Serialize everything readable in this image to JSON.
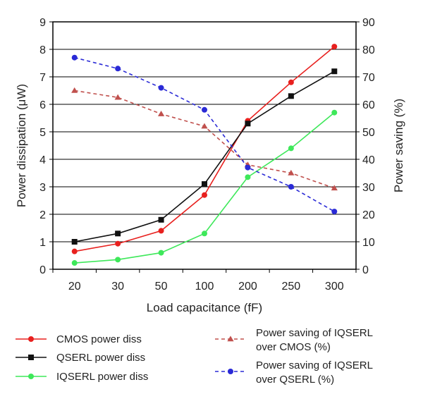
{
  "chart_data": {
    "type": "line",
    "categories": [
      "20",
      "30",
      "50",
      "100",
      "200",
      "250",
      "300"
    ],
    "xlabel": "Load capacitance (fF)",
    "ylabel_left": "Power dissipation (μW)",
    "ylabel_right": "Power saving (%)",
    "ylim_left": [
      0,
      9
    ],
    "ylim_right": [
      0,
      90
    ],
    "yticks_left": [
      "0",
      "1",
      "2",
      "3",
      "4",
      "5",
      "6",
      "7",
      "8",
      "9"
    ],
    "yticks_right": [
      "0",
      "10",
      "20",
      "30",
      "40",
      "50",
      "60",
      "70",
      "80",
      "90"
    ],
    "grid": true,
    "legend_position": "bottom",
    "series": [
      {
        "name": "CMOS power diss",
        "axis": "left",
        "color": "#e8201e",
        "marker": "circle",
        "dash": false,
        "values": [
          0.65,
          0.93,
          1.4,
          2.7,
          5.4,
          6.8,
          8.1
        ]
      },
      {
        "name": "QSERL power diss",
        "axis": "left",
        "color": "#111111",
        "marker": "square",
        "dash": false,
        "values": [
          1.0,
          1.3,
          1.8,
          3.1,
          5.3,
          6.3,
          7.2
        ]
      },
      {
        "name": "IQSERL power diss",
        "axis": "left",
        "color": "#3ee85a",
        "marker": "circle",
        "dash": false,
        "values": [
          0.23,
          0.35,
          0.6,
          1.3,
          3.35,
          4.4,
          5.7
        ]
      },
      {
        "name": "Power saving of IQSERL\nover CMOS (%)",
        "axis": "right",
        "color": "#c0504d",
        "marker": "triangle",
        "dash": true,
        "values": [
          65,
          62.5,
          56.5,
          52,
          38,
          35,
          29.5
        ]
      },
      {
        "name": "Power saving of IQSERL\nover QSERL (%)",
        "axis": "right",
        "color": "#2a2ad6",
        "marker": "circle",
        "dash": true,
        "values": [
          77,
          73,
          66,
          58,
          37,
          30,
          21
        ]
      }
    ]
  }
}
